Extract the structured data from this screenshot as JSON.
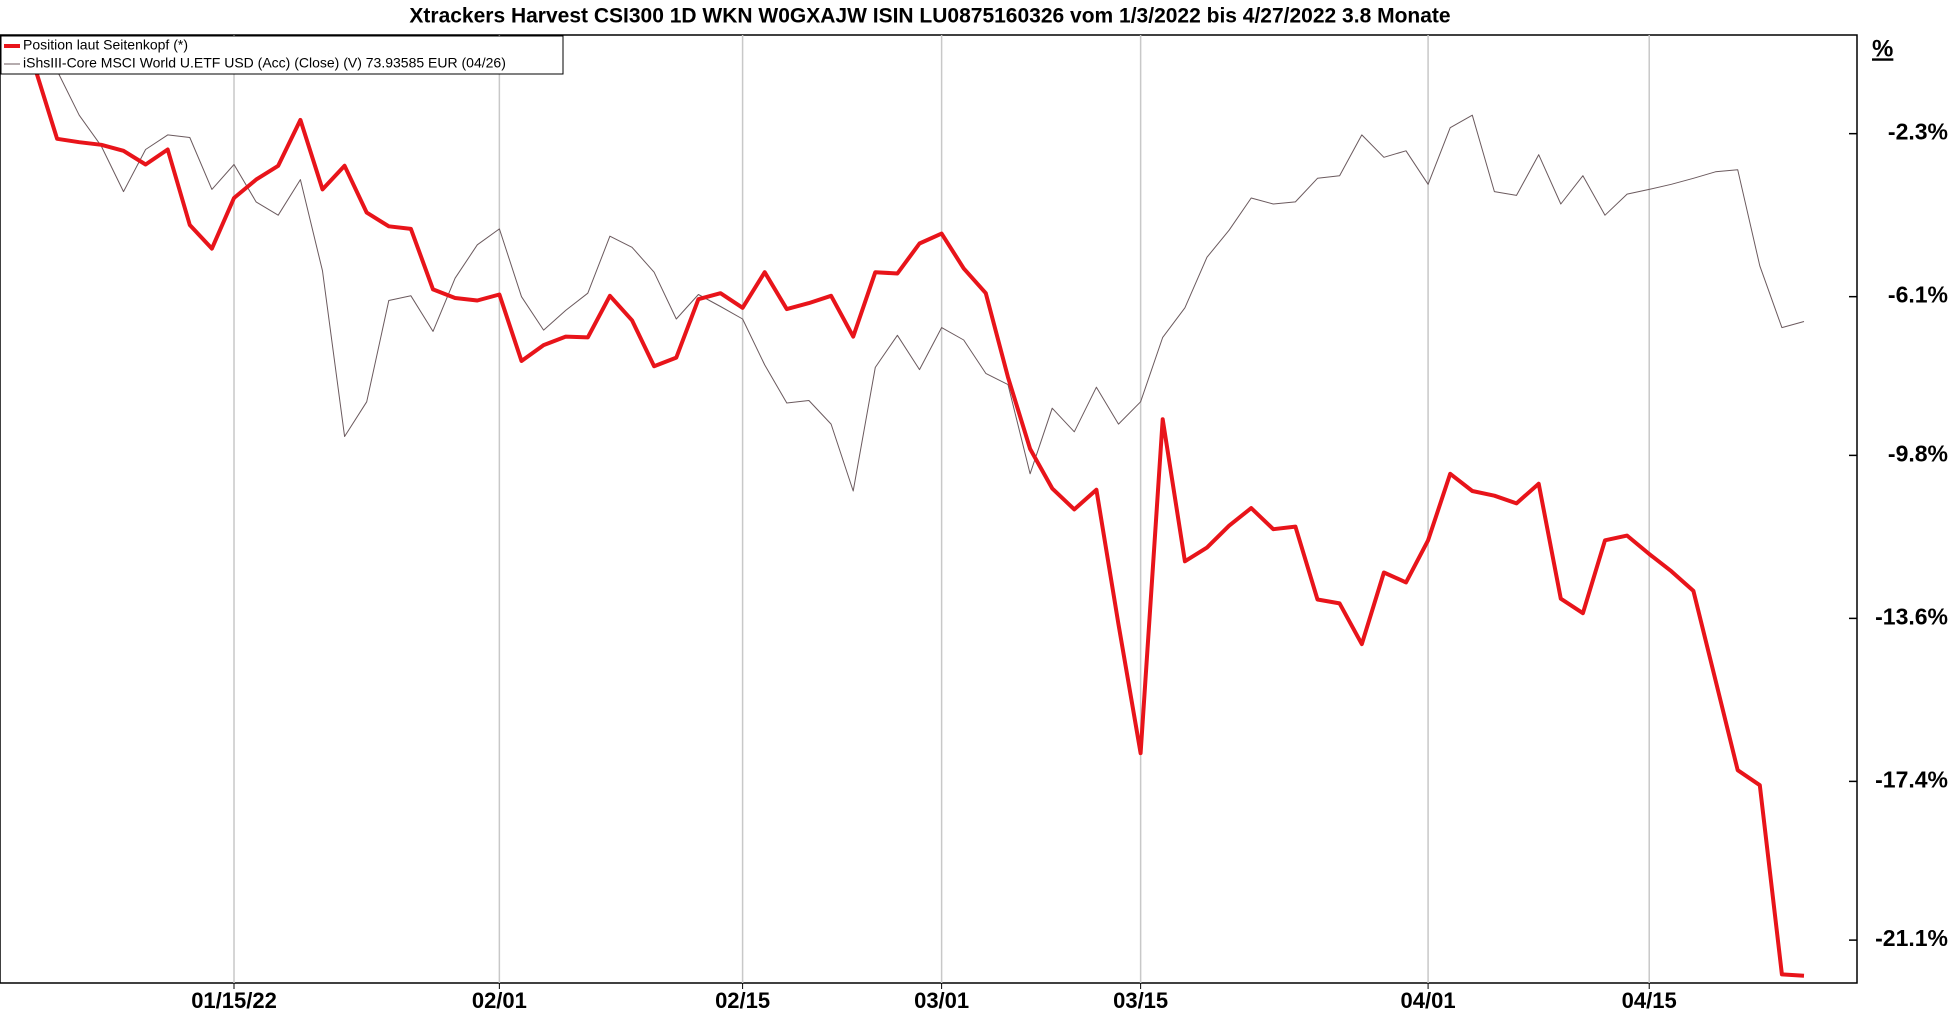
{
  "chart_data": {
    "type": "line",
    "title": "Xtrackers Harvest CSI300 1D WKN W0GXAJW ISIN LU0875160326 vom 1/3/2022 bis 4/27/2022 3.8 Monate",
    "y_unit": "%",
    "categories": [
      null,
      null,
      null,
      null,
      null,
      null,
      null,
      null,
      null,
      "01/15/22",
      null,
      null,
      null,
      null,
      null,
      null,
      null,
      null,
      null,
      null,
      null,
      "02/01",
      null,
      null,
      null,
      null,
      null,
      null,
      null,
      null,
      null,
      null,
      "02/15",
      null,
      null,
      null,
      null,
      null,
      null,
      null,
      null,
      "03/01",
      null,
      null,
      null,
      null,
      null,
      null,
      null,
      null,
      "03/15",
      null,
      null,
      null,
      null,
      null,
      null,
      null,
      null,
      null,
      null,
      null,
      null,
      "04/01",
      null,
      null,
      null,
      null,
      null,
      null,
      null,
      null,
      null,
      "04/15",
      null,
      null,
      null,
      null,
      null,
      null,
      null
    ],
    "series": [
      {
        "name": "Position laut Seitenkopf (*)",
        "color": "#e8141a",
        "width": 4,
        "values": [
          -0.77,
          -2.42,
          -2.5,
          -2.56,
          -2.7,
          -3.02,
          -2.67,
          -4.43,
          -4.98,
          -3.8,
          -3.37,
          -3.05,
          -1.98,
          -3.6,
          -3.05,
          -4.14,
          -4.46,
          -4.52,
          -5.93,
          -6.13,
          -6.19,
          -6.05,
          -7.6,
          -7.23,
          -7.03,
          -7.05,
          -6.08,
          -6.65,
          -7.72,
          -7.52,
          -6.16,
          -6.02,
          -6.36,
          -5.53,
          -6.39,
          -6.25,
          -6.08,
          -7.03,
          -5.53,
          -5.56,
          -4.86,
          -4.63,
          -5.44,
          -6.02,
          -7.98,
          -9.65,
          -10.57,
          -11.06,
          -10.6,
          -13.74,
          -16.74,
          -8.96,
          -12.27,
          -11.95,
          -11.44,
          -11.03,
          -11.52,
          -11.46,
          -13.16,
          -13.25,
          -14.2,
          -12.53,
          -12.76,
          -11.78,
          -10.23,
          -10.63,
          -10.74,
          -10.92,
          -10.46,
          -13.14,
          -13.48,
          -11.78,
          -11.67,
          -12.1,
          -12.5,
          -12.96,
          -15.04,
          -17.14,
          -17.49,
          -21.9,
          -21.93
        ]
      },
      {
        "name": "iShsIII-Core MSCI World U.ETF USD (Acc) (Close) (V) 73.93585 EUR (04/26)",
        "color": "#6b5a5e",
        "width": 1,
        "values": [
          -0.63,
          -0.83,
          -1.87,
          -2.59,
          -3.65,
          -2.67,
          -2.33,
          -2.39,
          -3.6,
          -3.02,
          -3.89,
          -4.2,
          -3.37,
          -5.5,
          -9.36,
          -8.55,
          -6.19,
          -6.08,
          -6.91,
          -5.67,
          -4.89,
          -4.52,
          -6.1,
          -6.88,
          -6.42,
          -6.02,
          -4.69,
          -4.95,
          -5.53,
          -6.62,
          -6.05,
          -6.33,
          -6.62,
          -7.69,
          -8.58,
          -8.52,
          -9.07,
          -10.63,
          -7.75,
          -7.0,
          -7.8,
          -6.82,
          -7.11,
          -7.89,
          -8.15,
          -10.23,
          -8.7,
          -9.25,
          -8.21,
          -9.07,
          -8.55,
          -7.05,
          -6.36,
          -5.18,
          -4.55,
          -3.8,
          -3.94,
          -3.89,
          -3.34,
          -3.28,
          -2.33,
          -2.85,
          -2.7,
          -3.48,
          -2.16,
          -1.87,
          -3.65,
          -3.74,
          -2.79,
          -3.94,
          -3.28,
          -4.2,
          -3.71,
          -3.6,
          -3.48,
          -3.34,
          -3.19,
          -3.14,
          -5.38,
          -6.82,
          -6.68
        ]
      }
    ],
    "ylim": [
      -22.1,
      0
    ],
    "yticks": [
      {
        "value": -2.3,
        "label": "-2.3%"
      },
      {
        "value": -6.1,
        "label": "-6.1%"
      },
      {
        "value": -9.8,
        "label": "-9.8%"
      },
      {
        "value": -13.6,
        "label": "-13.6%"
      },
      {
        "value": -17.4,
        "label": "-17.4%"
      },
      {
        "value": -21.1,
        "label": "-21.1%"
      }
    ],
    "grid": true,
    "legend": "top-left"
  }
}
